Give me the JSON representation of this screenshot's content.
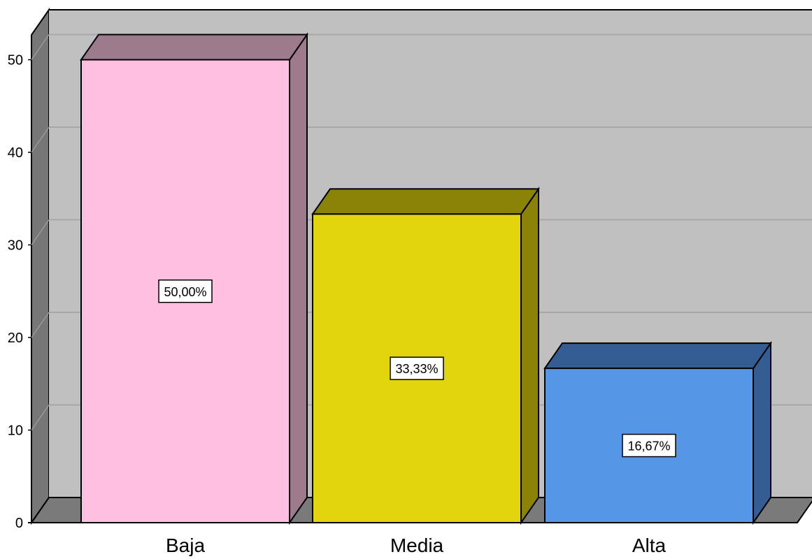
{
  "chart_data": {
    "type": "bar",
    "style": "3d",
    "title": "",
    "xlabel": "",
    "ylabel": "",
    "categories": [
      "Baja",
      "Media",
      "Alta"
    ],
    "values": [
      50,
      33.33,
      16.67
    ],
    "labels": [
      "50,00%",
      "33,33%",
      "16,67%"
    ],
    "ylim": [
      0,
      55
    ],
    "yticks": [
      "0",
      "10",
      "20",
      "30",
      "40",
      "50"
    ],
    "grid": true,
    "legend": "none",
    "colors": {
      "bars": [
        "#ffbfe0",
        "#e2d50e",
        "#5696e6"
      ],
      "bar_sides": [
        "#9d7a8c",
        "#8b8307",
        "#345e93"
      ],
      "wall": "#c0c0c0",
      "floor": "#7a7a7a",
      "side_wall": "#777777",
      "grid": "#a7a7a7"
    }
  }
}
